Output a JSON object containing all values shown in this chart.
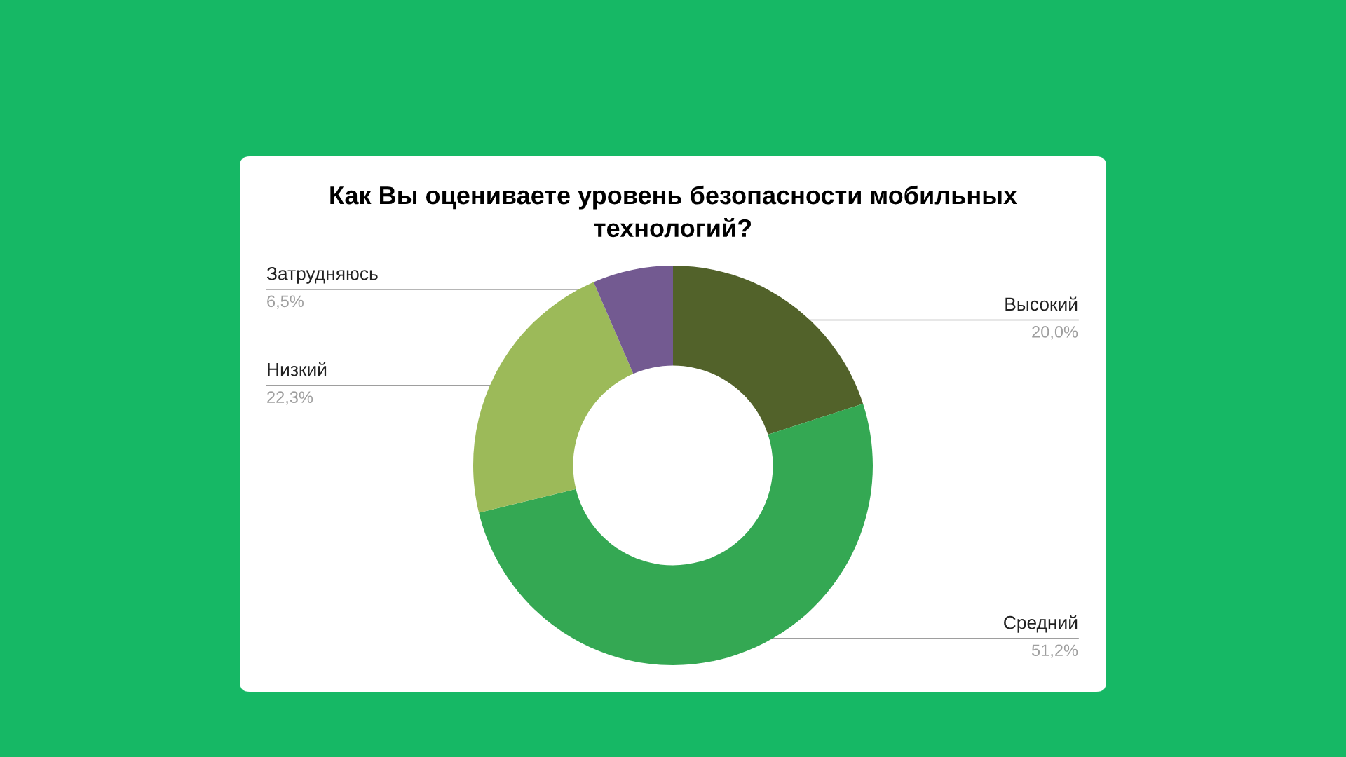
{
  "chart_data": {
    "type": "donut",
    "title": "Как Вы оцениваете уровень безопасности мобильных технологий?",
    "categories": [
      "Высокий",
      "Средний",
      "Низкий",
      "Затрудняюсь"
    ],
    "values": [
      20.0,
      51.2,
      22.3,
      6.5
    ],
    "value_labels": [
      "20,0%",
      "51,2%",
      "22,3%",
      "6,5%"
    ],
    "colors": [
      "#52622a",
      "#34a853",
      "#9cba59",
      "#735a91"
    ]
  }
}
